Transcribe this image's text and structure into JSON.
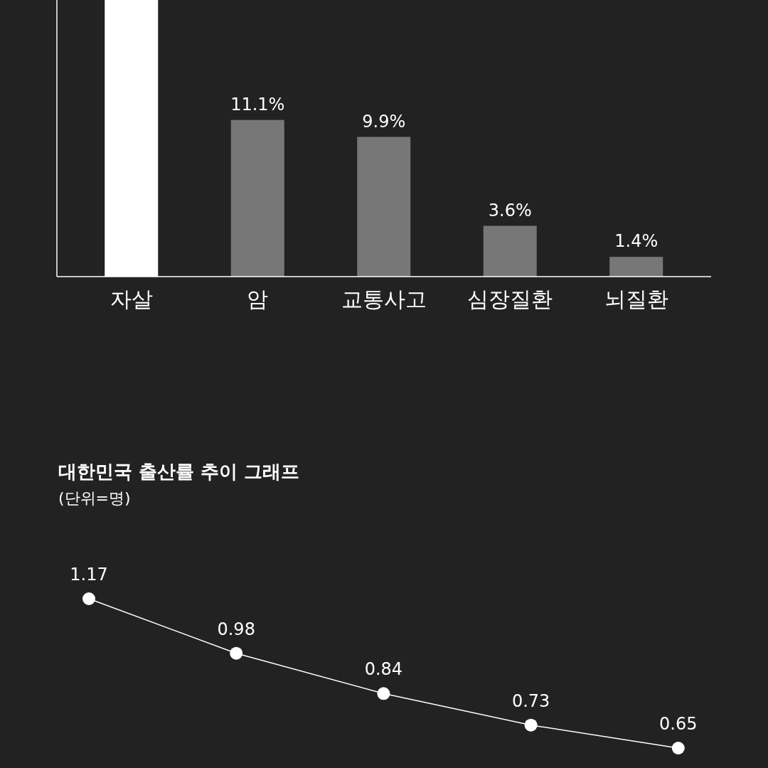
{
  "chart_data": [
    {
      "type": "bar",
      "categories": [
        "자살",
        "암",
        "교통사고",
        "심장질환",
        "뇌질환"
      ],
      "values": [
        19.6,
        11.1,
        9.9,
        3.6,
        1.4
      ],
      "colors": [
        "#ffffff",
        "#777777",
        "#777777",
        "#777777",
        "#777777"
      ],
      "value_labels": [
        null,
        "11.1%",
        "9.9%",
        "3.6%",
        "1.4%"
      ]
    },
    {
      "type": "line",
      "title": "대한민국 출산률 추이 그래프",
      "subtitle": "(단위=명)",
      "categories": [
        null,
        null,
        null,
        null,
        null
      ],
      "series": [
        {
          "color": "#ffffff",
          "values": [
            1.17,
            0.98,
            0.84,
            0.73,
            0.65
          ]
        }
      ],
      "data_labels": true,
      "marker": "circle"
    }
  ]
}
